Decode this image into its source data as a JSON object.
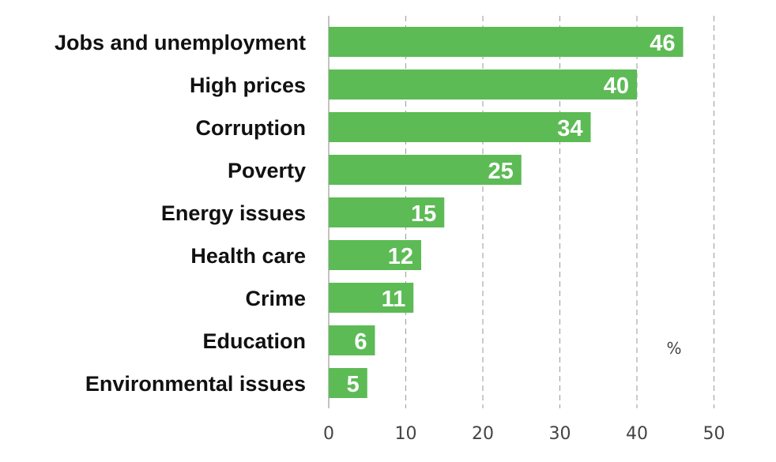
{
  "chart_data": {
    "type": "bar",
    "orientation": "horizontal",
    "categories": [
      "Jobs and unemployment",
      "High prices",
      "Corruption",
      "Poverty",
      "Energy issues",
      "Health care",
      "Crime",
      "Education",
      "Environmental issues"
    ],
    "values": [
      46,
      40,
      34,
      25,
      15,
      12,
      11,
      6,
      5
    ],
    "value_labels": [
      "46",
      "40",
      "34",
      "25",
      "15",
      "12",
      "11",
      "6",
      "5"
    ],
    "xlim": [
      0,
      50
    ],
    "xticks": [
      "0",
      "10",
      "20",
      "30",
      "40",
      "50"
    ],
    "unit": "%",
    "grid": true,
    "bar_color": "#5cbb55",
    "label_inside_color": "#ffffff",
    "label_outside_color": "#111111"
  }
}
